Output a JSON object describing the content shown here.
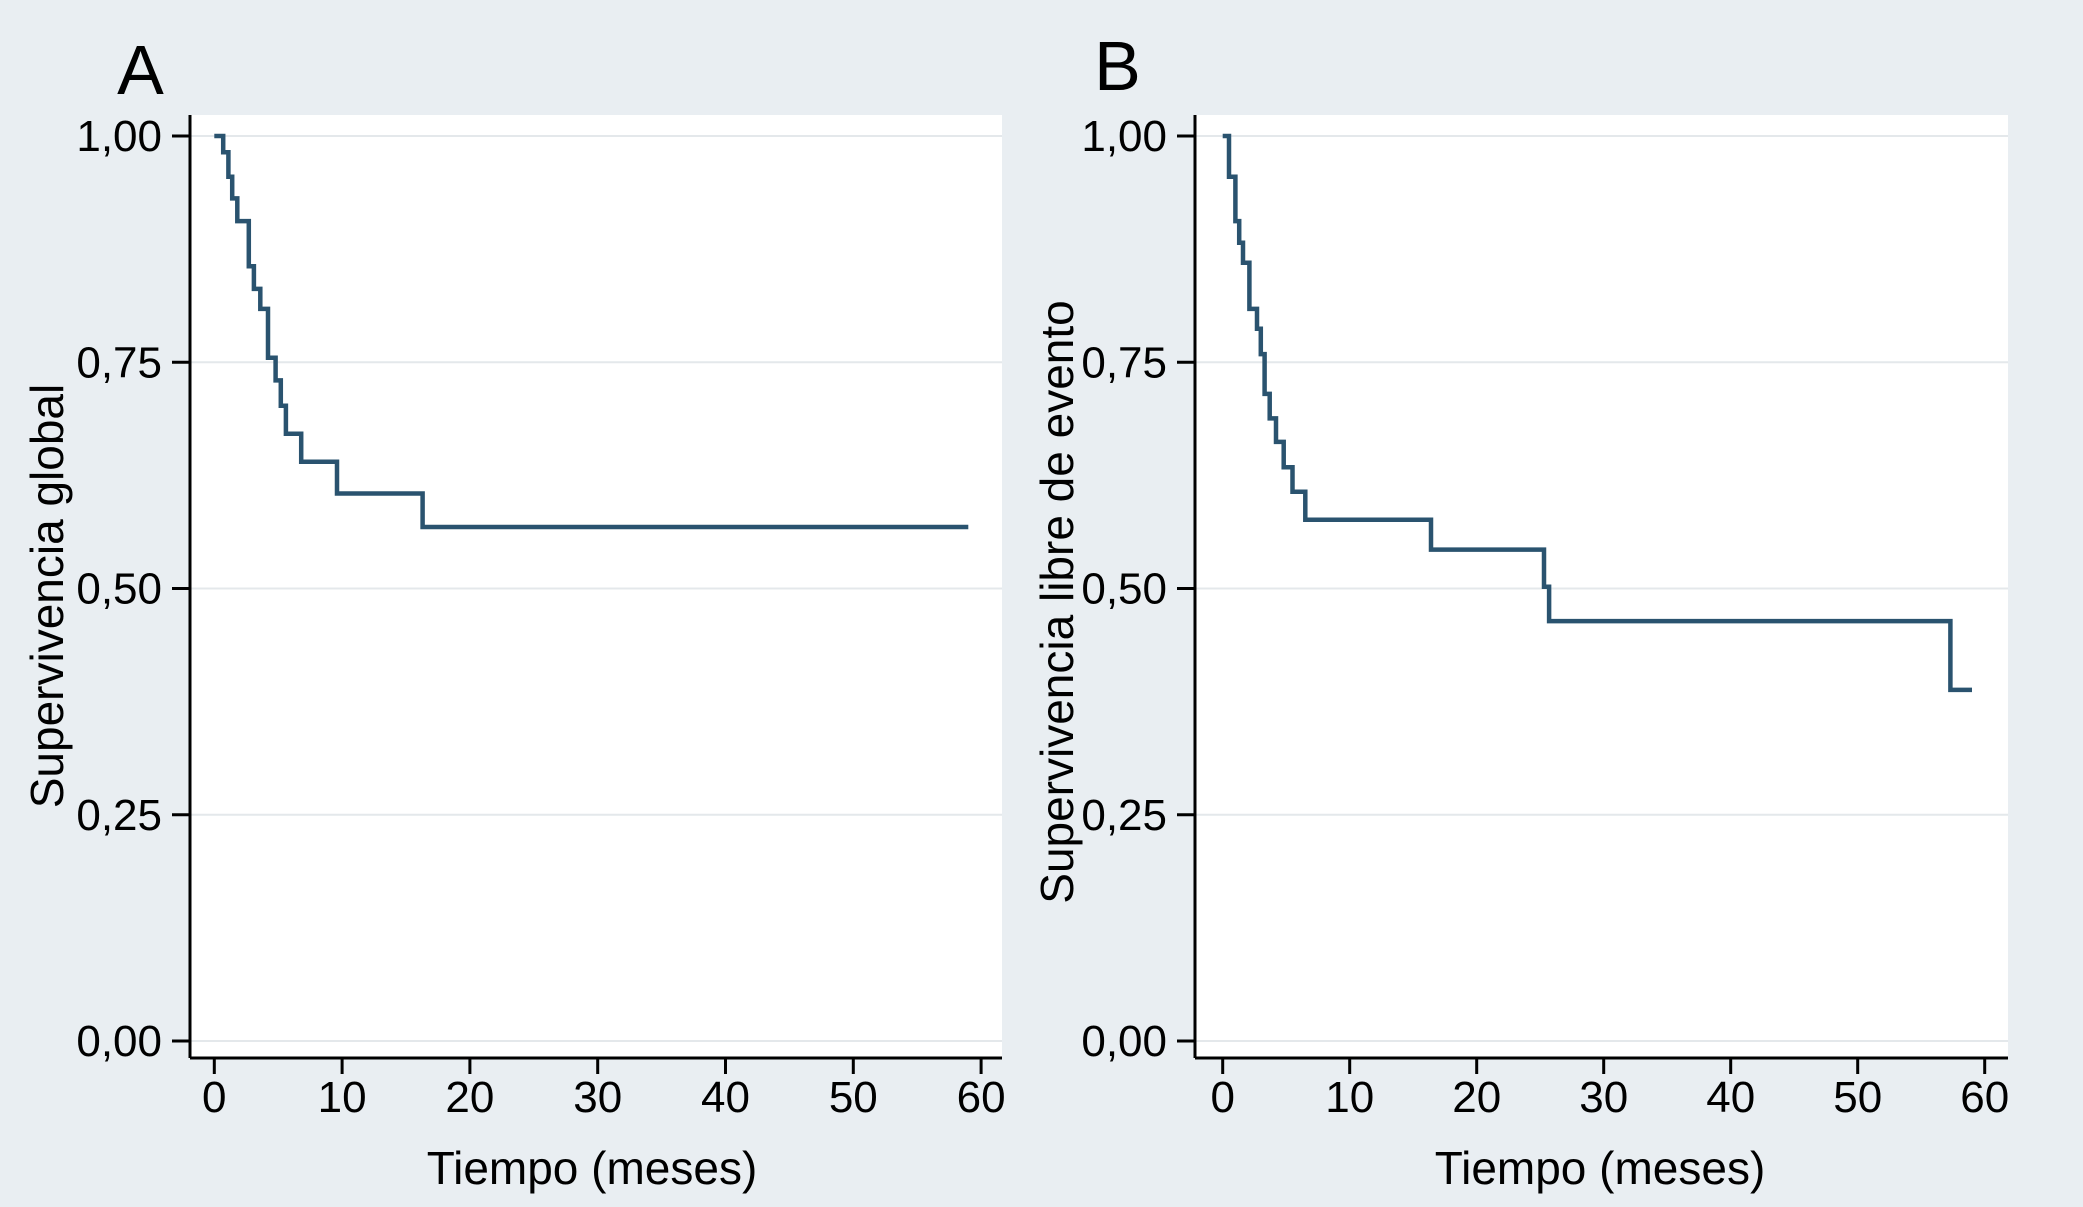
{
  "figure": {
    "description": "Two-panel Kaplan-Meier survival figure",
    "background_color": "#e9eef2",
    "plot_background_color": "#ffffff",
    "curve_color": "#2a536f",
    "grid_color": "#e4e8eb",
    "axis_color": "#000000",
    "text_color": "#000000"
  },
  "chart_data": [
    {
      "type": "line",
      "subtype": "kaplan-meier-step",
      "panel_label": "A",
      "ylabel": "Supervivencia global",
      "xlabel": "Tiempo (meses)",
      "legend": "none",
      "grid": "horizontal-light",
      "xticks": [
        0,
        10,
        20,
        30,
        40,
        50,
        60
      ],
      "xtick_labels": [
        "0",
        "10",
        "20",
        "30",
        "40",
        "50",
        "60"
      ],
      "ytick_values": [
        1.0,
        0.75,
        0.5,
        0.25,
        0.0
      ],
      "ytick_labels": [
        "1,00",
        "0,75",
        "0,50",
        "0,25",
        "0,00"
      ],
      "xlim": [
        -1.9,
        61.8
      ],
      "ylim": [
        -0.02,
        1.02
      ],
      "end_t": 59,
      "steps": [
        [
          0,
          1.0
        ],
        [
          0.7,
          0.982
        ],
        [
          1.1,
          0.955
        ],
        [
          1.4,
          0.931
        ],
        [
          1.8,
          0.906
        ],
        [
          2.7,
          0.856
        ],
        [
          3.1,
          0.831
        ],
        [
          3.6,
          0.809
        ],
        [
          4.2,
          0.755
        ],
        [
          4.8,
          0.73
        ],
        [
          5.2,
          0.702
        ],
        [
          5.6,
          0.671
        ],
        [
          6.8,
          0.64
        ],
        [
          9.6,
          0.605
        ],
        [
          16.3,
          0.568
        ]
      ]
    },
    {
      "type": "line",
      "subtype": "kaplan-meier-step",
      "panel_label": "B",
      "ylabel": "Supervivencia libre de evento",
      "xlabel": "Tiempo (meses)",
      "legend": "none",
      "grid": "horizontal-light",
      "xticks": [
        0,
        10,
        20,
        30,
        40,
        50,
        60
      ],
      "xtick_labels": [
        "0",
        "10",
        "20",
        "30",
        "40",
        "50",
        "60"
      ],
      "ytick_values": [
        1.0,
        0.75,
        0.5,
        0.25,
        0.0
      ],
      "ytick_labels": [
        "1,00",
        "0,75",
        "0,50",
        "0,25",
        "0,00"
      ],
      "xlim": [
        -2.1,
        61.8
      ],
      "ylim": [
        -0.02,
        1.02
      ],
      "end_t": 59,
      "steps": [
        [
          0,
          1.0
        ],
        [
          0.5,
          0.955
        ],
        [
          1.0,
          0.906
        ],
        [
          1.3,
          0.882
        ],
        [
          1.6,
          0.86
        ],
        [
          2.1,
          0.809
        ],
        [
          2.7,
          0.787
        ],
        [
          3.0,
          0.759
        ],
        [
          3.3,
          0.715
        ],
        [
          3.7,
          0.688
        ],
        [
          4.2,
          0.662
        ],
        [
          4.8,
          0.634
        ],
        [
          5.5,
          0.607
        ],
        [
          6.5,
          0.576
        ],
        [
          16.4,
          0.543
        ],
        [
          25.3,
          0.502
        ],
        [
          25.7,
          0.464
        ],
        [
          57.3,
          0.388
        ]
      ]
    }
  ]
}
